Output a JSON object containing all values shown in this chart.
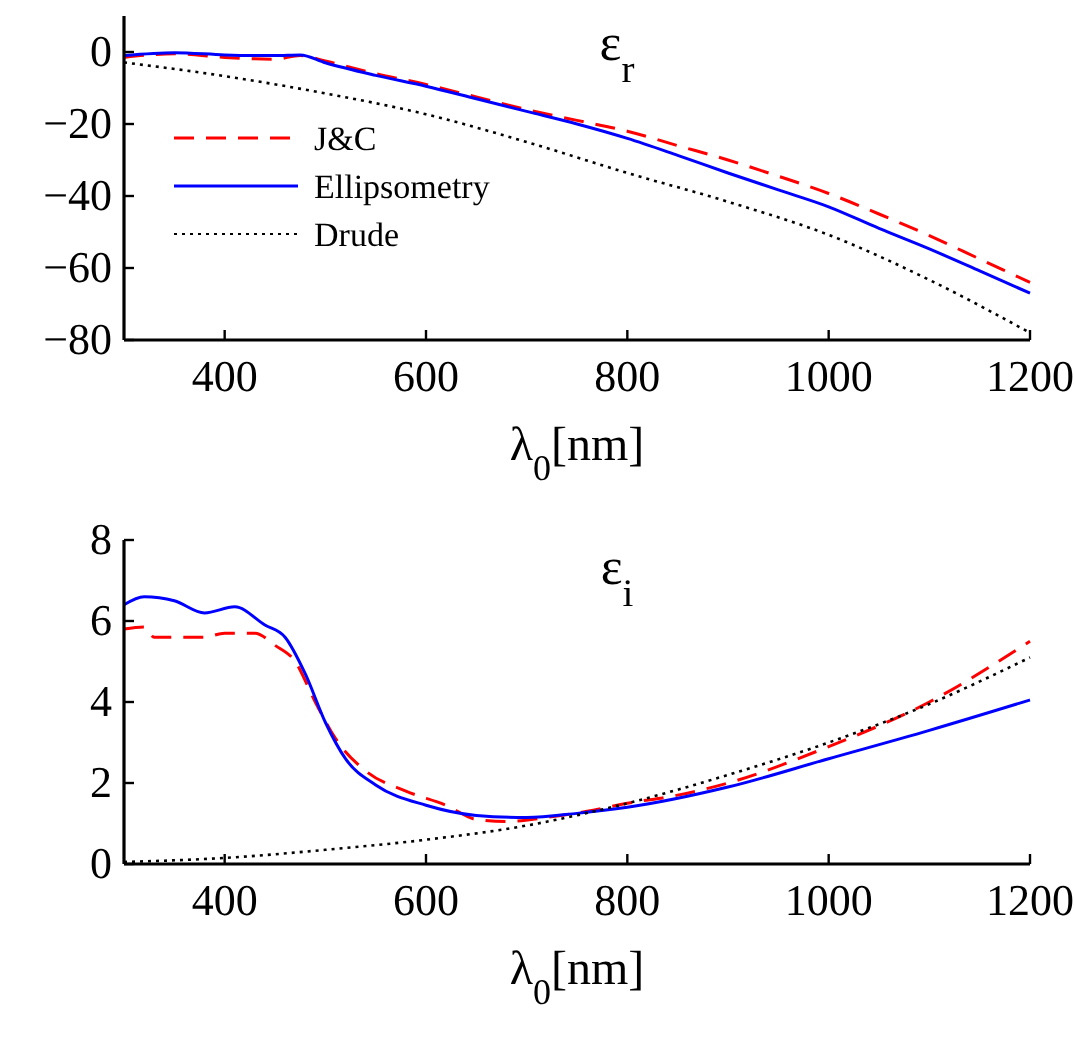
{
  "chart_data": [
    {
      "type": "line",
      "title": "ε$_{r}$",
      "xlabel": "λ$_{0}$[nm]",
      "xlim": [
        300,
        1200
      ],
      "xticks": [
        400,
        600,
        800,
        1000,
        1200
      ],
      "ylim": [
        -80,
        10
      ],
      "yticks": [
        -80,
        -60,
        -40,
        -20,
        0
      ],
      "legend": "left",
      "grid": false,
      "series": [
        {
          "name": "J&C",
          "color": "#ff0000",
          "line_style": "dashed",
          "x": [
            300,
            350,
            400,
            450,
            475,
            500,
            550,
            600,
            650,
            700,
            750,
            800,
            850,
            900,
            950,
            1000,
            1050,
            1100,
            1150,
            1200
          ],
          "values": [
            -1.5,
            -0.5,
            -1.5,
            -2,
            -1,
            -2.5,
            -6,
            -9,
            -12.5,
            -16,
            -19,
            -22,
            -26,
            -30,
            -34.5,
            -39.3,
            -45,
            -51,
            -57.5,
            -64
          ]
        },
        {
          "name": "Ellipsometry",
          "color": "#0000ff",
          "line_style": "solid",
          "x": [
            300,
            350,
            400,
            450,
            475,
            500,
            550,
            600,
            650,
            700,
            750,
            800,
            850,
            900,
            950,
            1000,
            1050,
            1100,
            1150,
            1200
          ],
          "values": [
            -1,
            -0.2,
            -0.8,
            -1,
            -0.8,
            -3,
            -6.5,
            -9.5,
            -13,
            -16.5,
            -20,
            -24,
            -28.7,
            -33.6,
            -38.3,
            -43,
            -49,
            -54.7,
            -60.8,
            -67
          ]
        },
        {
          "name": "Drude",
          "color": "#000000",
          "line_style": "dotted",
          "x": [
            300,
            400,
            500,
            600,
            700,
            800,
            900,
            1000,
            1100,
            1200
          ],
          "values": [
            -2.9,
            -6.7,
            -11.5,
            -17.3,
            -25,
            -33.6,
            -41.6,
            -50.8,
            -63.3,
            -78
          ]
        }
      ]
    },
    {
      "type": "line",
      "title": "ε$_{i}$",
      "xlabel": "λ$_{0}$[nm]",
      "xlim": [
        300,
        1200
      ],
      "xticks": [
        400,
        600,
        800,
        1000,
        1200
      ],
      "ylim": [
        0,
        8
      ],
      "yticks": [
        0,
        2,
        4,
        6,
        8
      ],
      "grid": false,
      "series": [
        {
          "color": "#ff0000",
          "line_style": "dashed",
          "x": [
            300,
            320,
            330,
            380,
            400,
            430,
            450,
            470,
            490,
            510,
            540,
            580,
            620,
            650,
            680,
            720,
            760,
            800,
            850,
            900,
            1000,
            1100,
            1200
          ],
          "values": [
            5.8,
            5.85,
            5.6,
            5.6,
            5.7,
            5.7,
            5.4,
            5.0,
            4.0,
            3.1,
            2.3,
            1.8,
            1.45,
            1.1,
            1.05,
            1.15,
            1.3,
            1.5,
            1.7,
            2.0,
            2.9,
            4.0,
            5.5
          ]
        },
        {
          "color": "#0000ff",
          "line_style": "solid",
          "x": [
            300,
            320,
            350,
            380,
            410,
            440,
            460,
            480,
            500,
            520,
            550,
            600,
            650,
            700,
            750,
            800,
            900,
            1000,
            1100,
            1200
          ],
          "values": [
            6.4,
            6.6,
            6.5,
            6.2,
            6.35,
            5.9,
            5.6,
            4.7,
            3.5,
            2.6,
            1.95,
            1.45,
            1.2,
            1.15,
            1.25,
            1.4,
            1.9,
            2.6,
            3.3,
            4.05
          ]
        },
        {
          "color": "#000000",
          "line_style": "dotted",
          "x": [
            300,
            400,
            500,
            600,
            700,
            800,
            900,
            1000,
            1100,
            1200
          ],
          "values": [
            0.05,
            0.15,
            0.35,
            0.6,
            0.95,
            1.5,
            2.2,
            3.0,
            3.95,
            5.1
          ]
        }
      ]
    }
  ]
}
